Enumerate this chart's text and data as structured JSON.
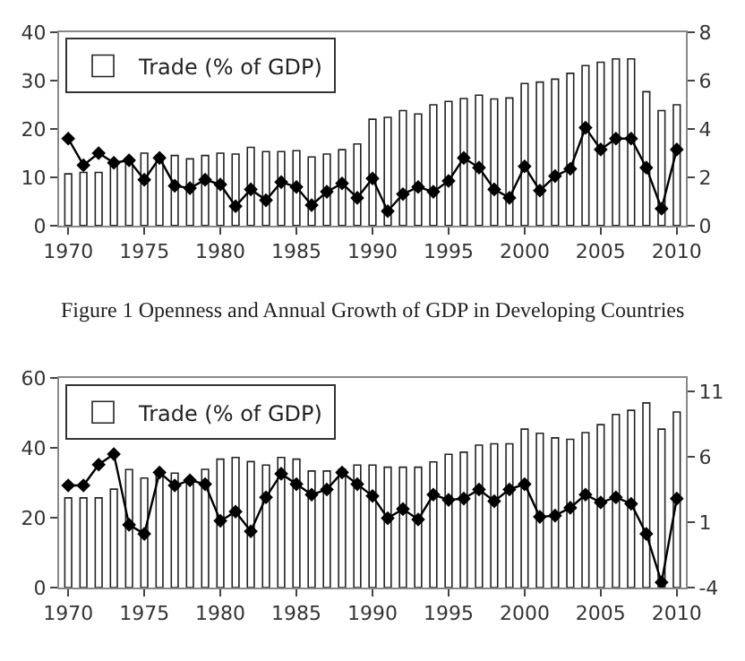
{
  "chart_data": [
    {
      "type": "bar",
      "x": [
        1970,
        1971,
        1972,
        1973,
        1974,
        1975,
        1976,
        1977,
        1978,
        1979,
        1980,
        1981,
        1982,
        1983,
        1984,
        1985,
        1986,
        1987,
        1988,
        1989,
        1990,
        1991,
        1992,
        1993,
        1994,
        1995,
        1996,
        1997,
        1998,
        1999,
        2000,
        2001,
        2002,
        2003,
        2004,
        2005,
        2006,
        2007,
        2008,
        2009,
        2010
      ],
      "xlim": [
        1969.4,
        2010.6
      ],
      "xticks": [
        1970,
        1975,
        1980,
        1985,
        1990,
        1995,
        2000,
        2005,
        2010
      ],
      "ylim": [
        0,
        40
      ],
      "yticks": [
        0,
        10,
        20,
        30,
        40
      ],
      "y2lim": [
        0,
        8
      ],
      "y2ticks": [
        0,
        2,
        4,
        6,
        8
      ],
      "legend": "top left",
      "annotations": [
        "Figure 1 Openness and Annual Growth of GDP in Developing Countries"
      ],
      "series": [
        {
          "name": "Trade (% of GDP)",
          "color": "#ffffff",
          "values": [
            10.7,
            11,
            11,
            13,
            14,
            15,
            14.5,
            14.5,
            13.8,
            14.5,
            15,
            14.8,
            16.2,
            15.3,
            15.3,
            15.5,
            14.2,
            14.8,
            15.7,
            16.9,
            22,
            22.4,
            23.8,
            23.1,
            25,
            25.7,
            26.3,
            27,
            26.2,
            26.4,
            29.4,
            29.7,
            30.3,
            31.5,
            33.1,
            33.8,
            34.5,
            34.5,
            27.7,
            23.8,
            25
          ]
        },
        {
          "type": "line",
          "axis": "y2",
          "color": "#000000",
          "marker": "diamond",
          "line_style": "solid",
          "values": [
            3.6,
            2.5,
            3.0,
            2.6,
            2.7,
            1.9,
            2.8,
            1.65,
            1.55,
            1.9,
            1.7,
            0.8,
            1.5,
            1.05,
            1.8,
            1.6,
            0.85,
            1.4,
            1.75,
            1.15,
            1.95,
            0.6,
            1.3,
            1.6,
            1.4,
            1.85,
            2.8,
            2.4,
            1.5,
            1.15,
            2.45,
            1.45,
            2.05,
            2.35,
            4.05,
            3.15,
            3.6,
            3.6,
            2.4,
            0.7,
            3.15
          ]
        }
      ]
    },
    {
      "type": "bar",
      "x": [
        1970,
        1971,
        1972,
        1973,
        1974,
        1975,
        1976,
        1977,
        1978,
        1979,
        1980,
        1981,
        1982,
        1983,
        1984,
        1985,
        1986,
        1987,
        1988,
        1989,
        1990,
        1991,
        1992,
        1993,
        1994,
        1995,
        1996,
        1997,
        1998,
        1999,
        2000,
        2001,
        2002,
        2003,
        2004,
        2005,
        2006,
        2007,
        2008,
        2009,
        2010
      ],
      "xlim": [
        1969.4,
        2010.6
      ],
      "xticks": [
        1970,
        1975,
        1980,
        1985,
        1990,
        1995,
        2000,
        2005,
        2010
      ],
      "ylim": [
        0,
        60
      ],
      "yticks": [
        0,
        20,
        40,
        60
      ],
      "y2lim": [
        -4,
        12
      ],
      "y2ticks": [
        -4,
        1,
        6,
        11
      ],
      "legend": "top left",
      "series": [
        {
          "name": "Trade (% of GDP)",
          "color": "#ffffff",
          "values": [
            25.7,
            25.7,
            25.7,
            28.2,
            33.8,
            31.4,
            32.8,
            32.8,
            31.4,
            33.9,
            36.8,
            37.3,
            36.1,
            35.1,
            37.3,
            36.8,
            33.4,
            33.4,
            33.9,
            35.1,
            35.1,
            34.5,
            34.5,
            34.5,
            36,
            38.2,
            38.8,
            40.8,
            41.2,
            41.2,
            45.4,
            44.2,
            42.9,
            42.5,
            44.4,
            46.7,
            49.6,
            50.8,
            52.9,
            45.4,
            50.3
          ]
        },
        {
          "type": "line",
          "axis": "y2",
          "color": "#000000",
          "marker": "diamond",
          "line_style": "solid",
          "values": [
            3.8,
            3.8,
            5.4,
            6.2,
            0.8,
            0.1,
            4.8,
            3.8,
            4.2,
            3.9,
            1.1,
            1.8,
            0.3,
            2.9,
            4.7,
            3.9,
            3.1,
            3.5,
            4.8,
            3.9,
            3.0,
            1.3,
            2.0,
            1.2,
            3.1,
            2.7,
            2.8,
            3.5,
            2.6,
            3.5,
            3.9,
            1.4,
            1.5,
            2.1,
            3.1,
            2.5,
            2.9,
            2.4,
            0.1,
            -3.6,
            2.8
          ]
        }
      ]
    }
  ]
}
